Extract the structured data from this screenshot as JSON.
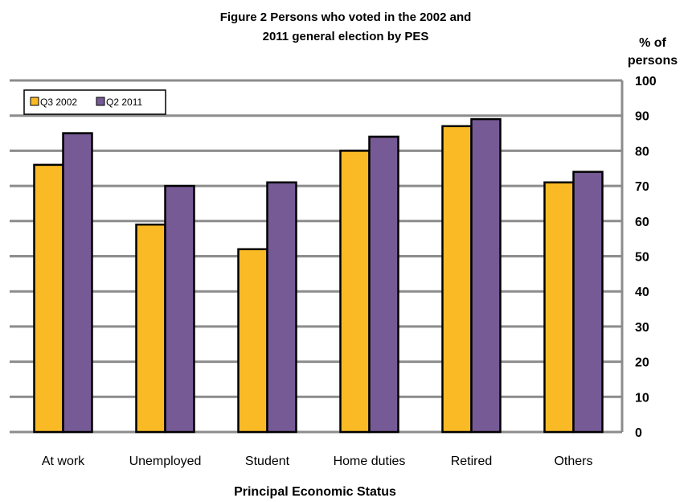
{
  "chart_data": {
    "type": "bar",
    "title_line1": "Figure 2  Persons who voted in the 2002 and",
    "title_line2": "2011 general election by PES",
    "ylabel_line1": "% of",
    "ylabel_line2": "persons",
    "xlabel": "Principal Economic Status",
    "categories": [
      "At work",
      "Unemployed",
      "Student",
      "Home duties",
      "Retired",
      "Others"
    ],
    "series": [
      {
        "name": "Q3 2002",
        "color": "#F9BA25",
        "values": [
          76,
          59,
          52,
          80,
          87,
          71
        ]
      },
      {
        "name": "Q2 2011",
        "color": "#765A96",
        "values": [
          85,
          70,
          71,
          84,
          89,
          74
        ]
      }
    ],
    "ylim": [
      0,
      100
    ],
    "yticks": [
      0,
      10,
      20,
      30,
      40,
      50,
      60,
      70,
      80,
      90,
      100
    ],
    "grid": true,
    "legend_position": "top-left",
    "axis_side": "right"
  }
}
